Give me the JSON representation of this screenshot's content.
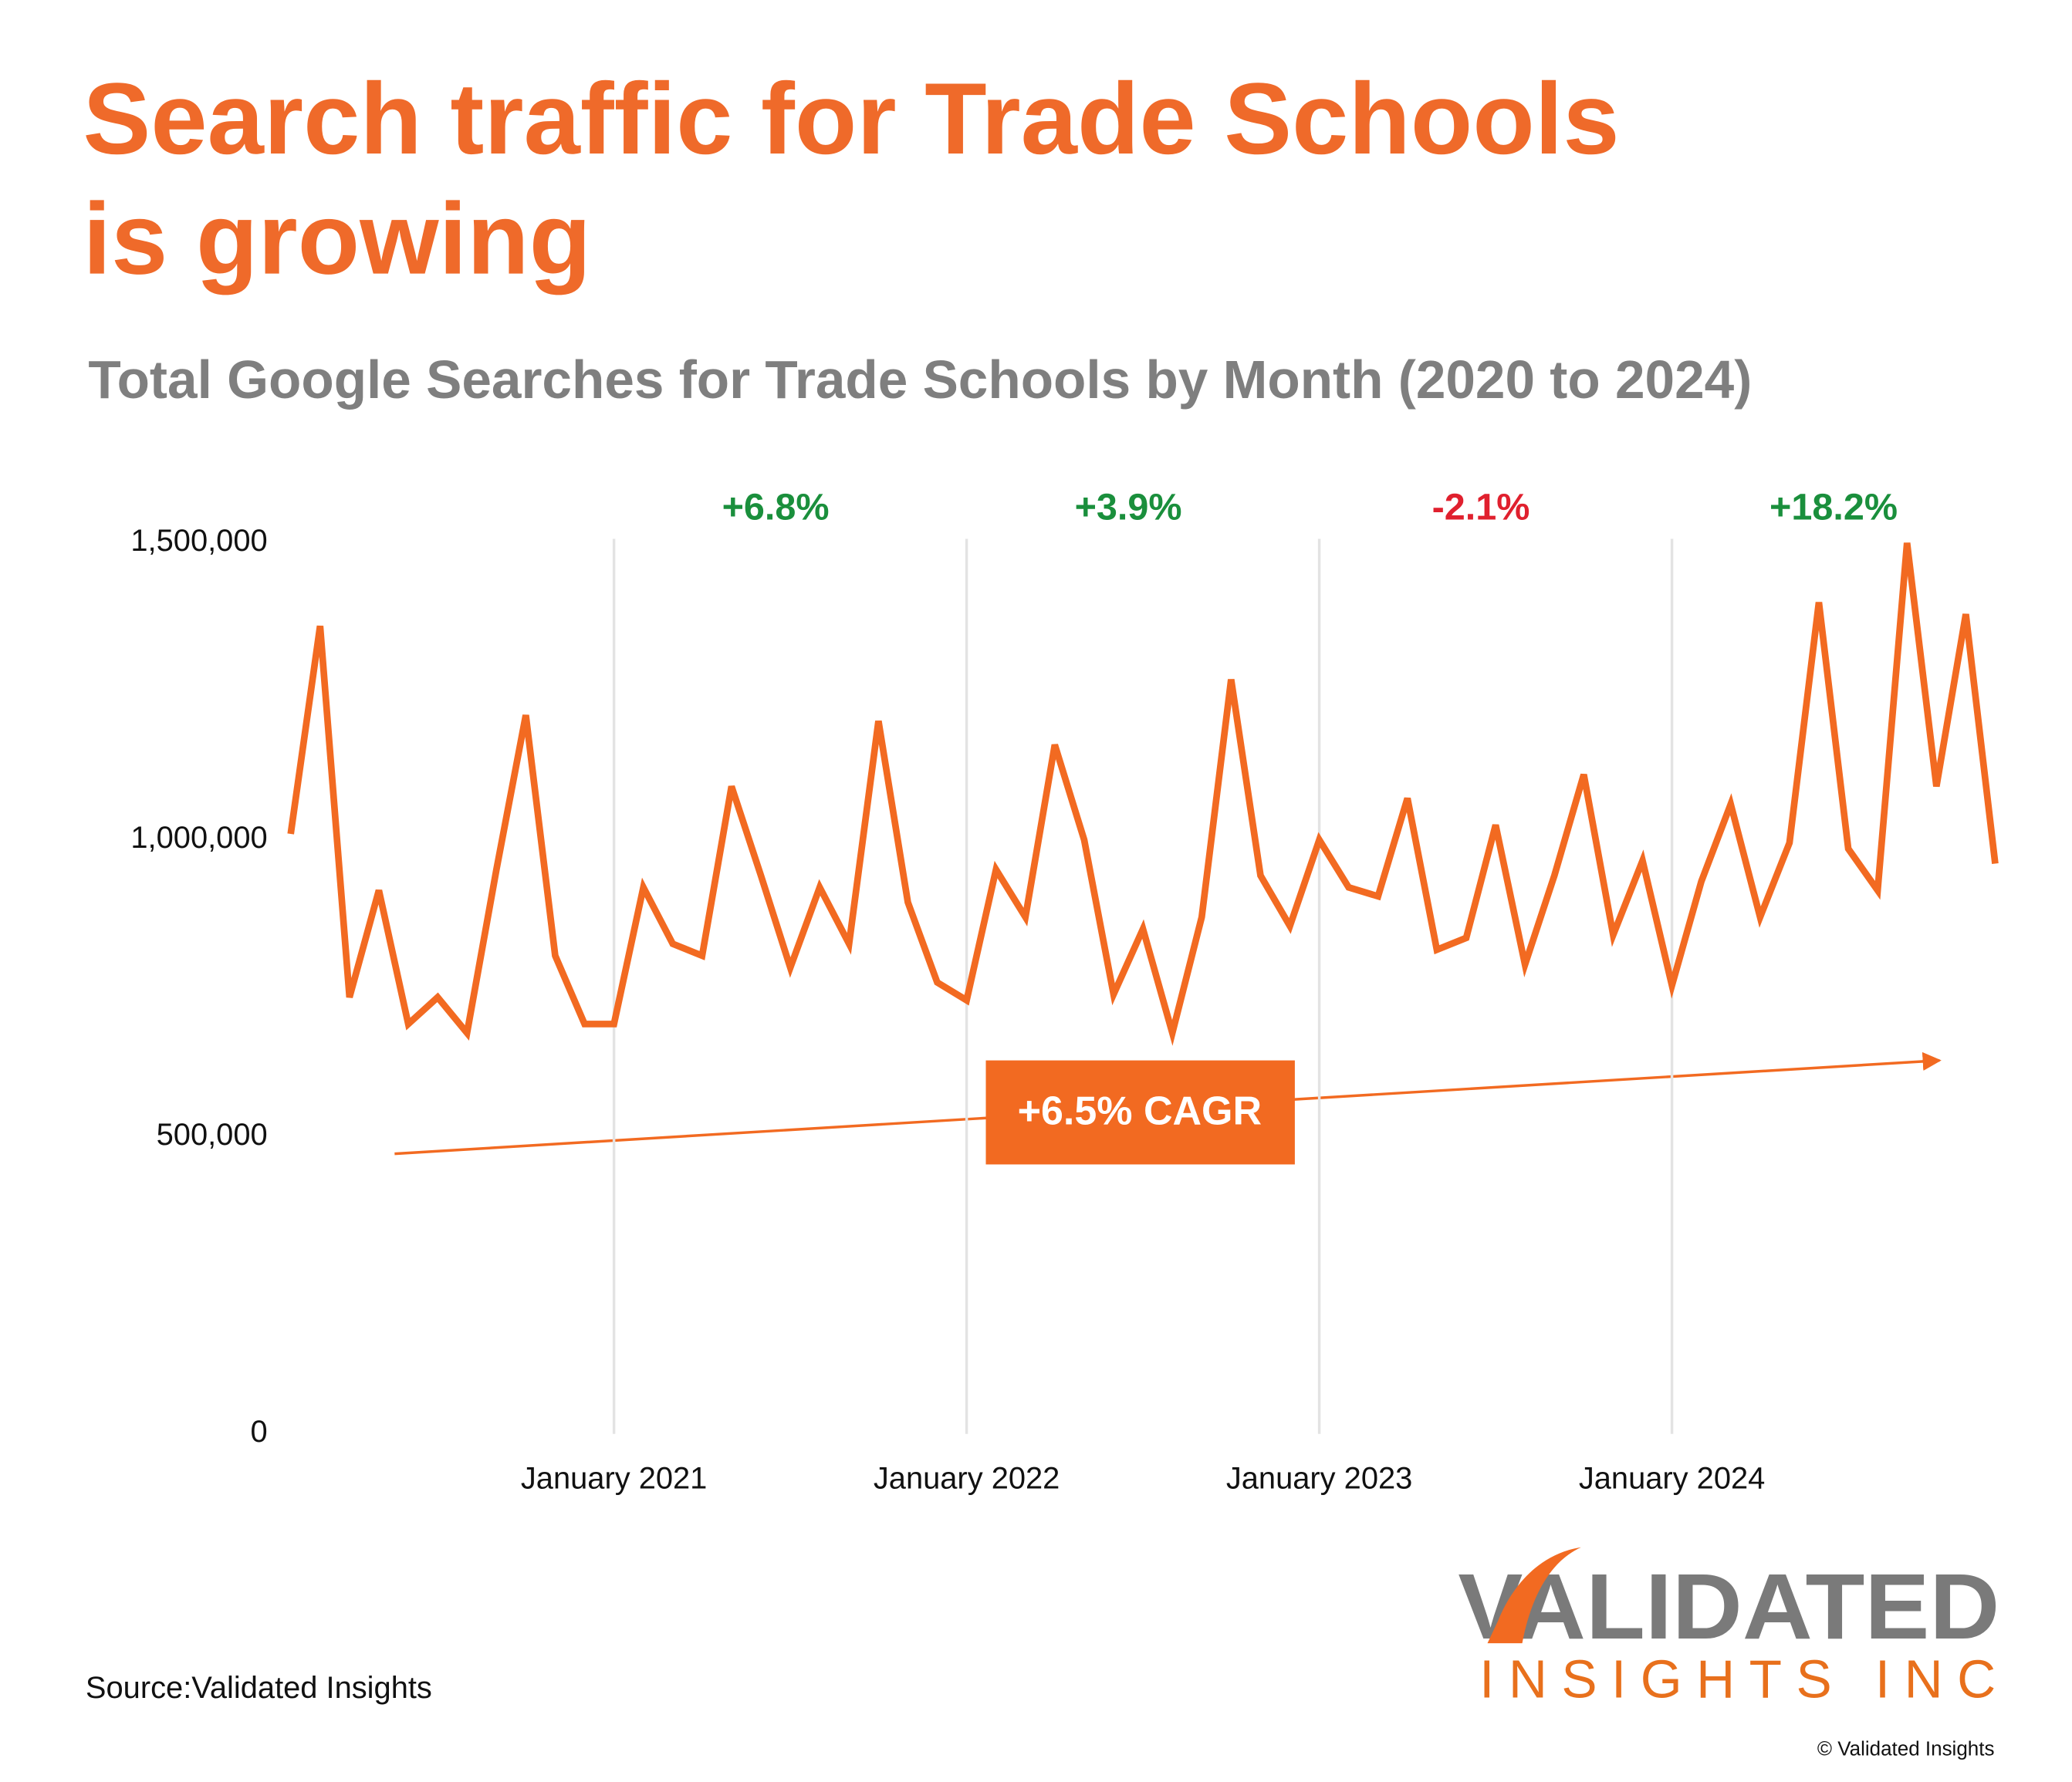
{
  "chart_data": {
    "type": "line",
    "title": [
      "Search traffic for Trade Schools",
      "is growing"
    ],
    "subtitle": "Total Google Searches for Trade Schools by Month (2020 to 2024)",
    "x": [
      "2020-02",
      "2020-03",
      "2020-04",
      "2020-05",
      "2020-06",
      "2020-07",
      "2020-08",
      "2020-09",
      "2020-10",
      "2020-11",
      "2020-12",
      "2021-01",
      "2021-02",
      "2021-03",
      "2021-04",
      "2021-05",
      "2021-06",
      "2021-07",
      "2021-08",
      "2021-09",
      "2021-10",
      "2021-11",
      "2021-12",
      "2022-01",
      "2022-02",
      "2022-03",
      "2022-04",
      "2022-05",
      "2022-06",
      "2022-07",
      "2022-08",
      "2022-09",
      "2022-10",
      "2022-11",
      "2022-12",
      "2023-01",
      "2023-02",
      "2023-03",
      "2023-04",
      "2023-05",
      "2023-06",
      "2023-07",
      "2023-08",
      "2023-09",
      "2023-10",
      "2023-11",
      "2023-12",
      "2024-01",
      "2024-02",
      "2024-03",
      "2024-04",
      "2024-05",
      "2024-06",
      "2024-07",
      "2024-08",
      "2024-09",
      "2024-10",
      "2024-11",
      "2024-12"
    ],
    "series": [
      {
        "name": "Total Google Searches",
        "color": "#f26a21",
        "values": [
          1010000,
          1360000,
          735000,
          915000,
          690000,
          735000,
          675000,
          950000,
          1210000,
          805000,
          690000,
          690000,
          920000,
          825000,
          805000,
          1090000,
          940000,
          785000,
          920000,
          825000,
          1200000,
          895000,
          760000,
          730000,
          950000,
          870000,
          1160000,
          1000000,
          740000,
          850000,
          675000,
          870000,
          1270000,
          940000,
          855000,
          1000000,
          920000,
          905000,
          1070000,
          815000,
          835000,
          1025000,
          790000,
          940000,
          1110000,
          840000,
          965000,
          755000,
          930000,
          1060000,
          870000,
          995000,
          1400000,
          985000,
          915000,
          1500000,
          1090000,
          1380000,
          960000
        ]
      }
    ],
    "ylim": [
      0,
      1500000
    ],
    "yticks": [
      0,
      {
        "value": 500000,
        "label": "500,000"
      },
      {
        "value": 1000000,
        "label": "1,000,000"
      },
      {
        "value": 1500000,
        "label": "1,500,000"
      }
    ],
    "xticks": [
      {
        "value": "2021-01",
        "label": "January 2021"
      },
      {
        "value": "2022-01",
        "label": "January 2022"
      },
      {
        "value": "2023-01",
        "label": "January 2023"
      },
      {
        "value": "2024-01",
        "label": "January 2024"
      }
    ],
    "grid": true,
    "annotations": [
      {
        "text": "+6.8%",
        "color": "#1a8f3c"
      },
      {
        "text": "+3.9%",
        "color": "#1a8f3c"
      },
      {
        "text": "-2.1%",
        "color": "#e0202e"
      },
      {
        "text": "+18.2%",
        "color": "#1a8f3c"
      }
    ],
    "trend_label": "+6.5% CAGR",
    "source": "Source:Validated Insights",
    "logo": [
      "VALIDATED",
      "INSIGHTS INC"
    ],
    "copyright": "© Validated Insights"
  }
}
